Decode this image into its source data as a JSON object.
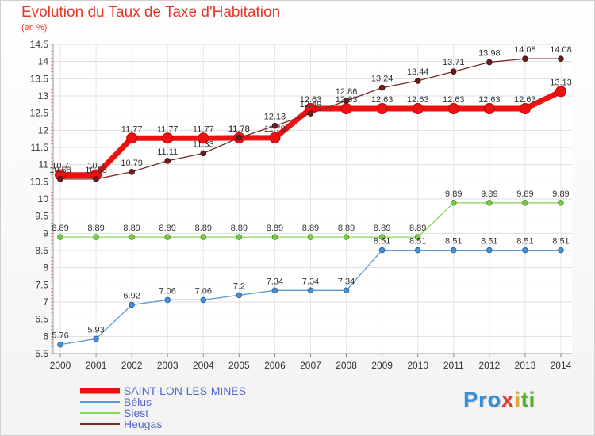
{
  "title": "Evolution du Taux de Taxe d'Habitation",
  "unit_label": "(en %)",
  "logo_text": [
    "Pro",
    "x",
    "i",
    "ti"
  ],
  "chart_data": {
    "type": "line",
    "title": "Evolution du Taux de Taxe d'Habitation",
    "ylabel": "(en %)",
    "xlabel": "",
    "x": [
      "2000",
      "2001",
      "2002",
      "2003",
      "2004",
      "2005",
      "2006",
      "2007",
      "2008",
      "2009",
      "2010",
      "2011",
      "2012",
      "2013",
      "2014"
    ],
    "ylim": [
      5.5,
      14.5
    ],
    "yticks": [
      "5.5",
      "6",
      "6.5",
      "7",
      "7.5",
      "8",
      "8.5",
      "9",
      "9.5",
      "10",
      "10.5",
      "11",
      "11.5",
      "12",
      "12.5",
      "13",
      "13.5",
      "14",
      "14.5"
    ],
    "grid": true,
    "legend_position": "bottom-left",
    "series": [
      {
        "name": "SAINT-LON-LES-MINES",
        "color": "#ee1111",
        "values": [
          10.7,
          10.7,
          11.77,
          11.77,
          11.77,
          11.78,
          11.78,
          12.63,
          12.63,
          12.63,
          12.63,
          12.63,
          12.63,
          12.63,
          13.13
        ],
        "labels": [
          "10.7",
          "10.7",
          "11.77",
          "11.77",
          "11.77",
          "11.78",
          "11.78",
          "12.63",
          "12.63",
          "12.63",
          "12.63",
          "12.63",
          "12.63",
          "12.63",
          "13.13"
        ]
      },
      {
        "name": "Bélus",
        "color": "#5b9bd5",
        "values": [
          5.76,
          5.93,
          6.92,
          7.06,
          7.06,
          7.2,
          7.34,
          7.34,
          7.34,
          8.51,
          8.51,
          8.51,
          8.51,
          8.51,
          8.51
        ],
        "labels": [
          "5.76",
          "5.93",
          "6.92",
          "7.06",
          "7.06",
          "7.2",
          "7.34",
          "7.34",
          "7.34",
          "8.51",
          "8.51",
          "8.51",
          "8.51",
          "8.51",
          "8.51"
        ]
      },
      {
        "name": "Siest",
        "color": "#8ed65c",
        "values": [
          8.89,
          8.89,
          8.89,
          8.89,
          8.89,
          8.89,
          8.89,
          8.89,
          8.89,
          8.89,
          8.89,
          9.89,
          9.89,
          9.89,
          9.89
        ],
        "labels": [
          "8.89",
          "8.89",
          "8.89",
          "8.89",
          "8.89",
          "8.89",
          "8.89",
          "8.89",
          "8.89",
          "8.89",
          "8.89",
          "9.89",
          "9.89",
          "9.89",
          "9.89"
        ]
      },
      {
        "name": "Heugas",
        "color": "#7a2a2a",
        "values": [
          10.58,
          10.58,
          10.79,
          11.11,
          11.33,
          11.78,
          12.13,
          12.49,
          12.86,
          13.24,
          13.44,
          13.71,
          13.98,
          14.08,
          14.08
        ],
        "labels": [
          "10.58",
          "10.58",
          "10.79",
          "11.11",
          "11.33",
          "11.78",
          "12.13",
          "12.49",
          "12.86",
          "13.24",
          "13.44",
          "13.71",
          "13.98",
          "14.08",
          "14.08"
        ]
      }
    ]
  }
}
